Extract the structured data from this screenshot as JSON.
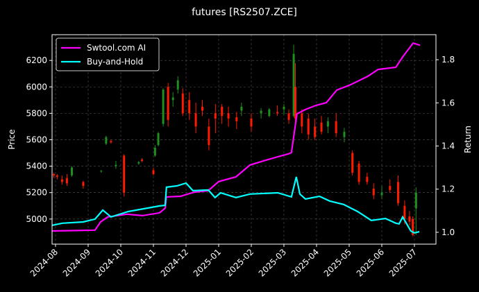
{
  "chart_data": {
    "type": "candlestick",
    "title": "futures [RS2507.ZCE]",
    "y_label": "Price",
    "y2_label": "Return",
    "xlim": [
      -0.106,
      11.66
    ],
    "xticks": [
      {
        "value": 0,
        "label": "2024-08"
      },
      {
        "value": 1,
        "label": "2024-09"
      },
      {
        "value": 2,
        "label": "2024-10"
      },
      {
        "value": 3,
        "label": "2024-11"
      },
      {
        "value": 4,
        "label": "2024-12"
      },
      {
        "value": 5,
        "label": "2025-01"
      },
      {
        "value": 6,
        "label": "2025-02"
      },
      {
        "value": 7,
        "label": "2025-03"
      },
      {
        "value": 8,
        "label": "2025-04"
      },
      {
        "value": 9,
        "label": "2025-05"
      },
      {
        "value": 10,
        "label": "2025-06"
      },
      {
        "value": 11,
        "label": "2025-07"
      }
    ],
    "ylim": [
      4810,
      6395
    ],
    "yticks": [
      5000,
      5200,
      5400,
      5600,
      5800,
      6000,
      6200
    ],
    "y2lim": [
      0.945,
      1.916
    ],
    "y2ticks": [
      {
        "value": 1,
        "label": "1.0"
      },
      1.2,
      1.4,
      1.6,
      1.8
    ],
    "grid": true,
    "legend_position": "upper-left",
    "up_color": "#1f8f1f",
    "down_color": "#ff1a00",
    "candles": {
      "x": [
        -0.05,
        0.05,
        0.2,
        0.35,
        0.5,
        0.85,
        1.4,
        1.55,
        1.7,
        1.85,
        2.1,
        2.55,
        2.65,
        3.0,
        3.05,
        3.15,
        3.3,
        3.45,
        3.6,
        3.75,
        3.9,
        4.1,
        4.3,
        4.5,
        4.7,
        4.9,
        5.1,
        5.3,
        5.55,
        5.7,
        6.0,
        6.3,
        6.55,
        6.8,
        7.0,
        7.15,
        7.3,
        7.35,
        7.55,
        7.75,
        7.95,
        8.15,
        8.35,
        8.6,
        8.85,
        9.1,
        9.3,
        9.55,
        9.75,
        10.0,
        10.25,
        10.5,
        10.7,
        10.85,
        10.95,
        11.05
      ],
      "open": [
        5340,
        5330,
        5300,
        5310,
        5330,
        5280,
        5360,
        5570,
        5590,
        5400,
        5480,
        5420,
        5450,
        5370,
        5480,
        5560,
        5720,
        6000,
        5900,
        5980,
        5950,
        5900,
        5800,
        5850,
        5700,
        5800,
        5850,
        5800,
        5770,
        5820,
        5760,
        5800,
        5780,
        5810,
        5830,
        5800,
        5780,
        6000,
        5800,
        5760,
        5700,
        5730,
        5700,
        5740,
        5620,
        5500,
        5420,
        5320,
        5230,
        5180,
        5250,
        5280,
        5100,
        5020,
        5000,
        5080
      ],
      "high": [
        5350,
        5340,
        5330,
        5340,
        5400,
        5290,
        5370,
        5630,
        5600,
        5440,
        5490,
        5440,
        5460,
        5390,
        5560,
        5660,
        5990,
        6030,
        5960,
        6080,
        5990,
        5960,
        5880,
        5900,
        5760,
        5870,
        5870,
        5850,
        5810,
        5880,
        5800,
        5840,
        5840,
        5860,
        5870,
        5830,
        6320,
        6180,
        5830,
        5800,
        5760,
        5780,
        5770,
        5800,
        5690,
        5520,
        5440,
        5350,
        5270,
        5250,
        5300,
        5330,
        5140,
        5060,
        5020,
        5240
      ],
      "low": [
        5310,
        5300,
        5260,
        5250,
        5320,
        5230,
        5350,
        5560,
        5570,
        5380,
        5170,
        5410,
        5430,
        5330,
        5470,
        5550,
        5700,
        5700,
        5850,
        5950,
        5780,
        5750,
        5650,
        5780,
        5520,
        5650,
        5720,
        5700,
        5680,
        5780,
        5660,
        5760,
        5770,
        5780,
        5790,
        5720,
        5770,
        5700,
        5650,
        5600,
        5600,
        5640,
        5650,
        5620,
        5580,
        5330,
        5260,
        5260,
        5150,
        5150,
        5200,
        5100,
        4960,
        4950,
        4870,
        4880
      ],
      "close": [
        5330,
        5320,
        5280,
        5270,
        5390,
        5250,
        5365,
        5620,
        5580,
        5410,
        5200,
        5430,
        5440,
        5340,
        5540,
        5650,
        5980,
        5750,
        5920,
        6050,
        5800,
        5800,
        5700,
        5820,
        5560,
        5760,
        5780,
        5760,
        5740,
        5850,
        5700,
        5820,
        5830,
        5800,
        5850,
        5750,
        6250,
        5760,
        5700,
        5640,
        5620,
        5660,
        5740,
        5650,
        5660,
        5350,
        5280,
        5280,
        5180,
        5200,
        5220,
        5120,
        5000,
        4980,
        4880,
        5200
      ]
    },
    "series": [
      {
        "name": "Swtool.com AI",
        "color": "#ff00ff",
        "axis": "y2",
        "x": [
          -0.11,
          1.21,
          1.38,
          1.6,
          2.19,
          2.66,
          3.19,
          3.36,
          3.4,
          3.83,
          4.26,
          4.68,
          5.0,
          5.53,
          5.96,
          6.38,
          6.81,
          7.13,
          7.23,
          7.4,
          7.66,
          7.98,
          8.3,
          8.62,
          9.04,
          9.57,
          9.89,
          10.43,
          10.64,
          10.96,
          11.17
        ],
        "values": [
          1.006,
          1.01,
          1.048,
          1.071,
          1.084,
          1.077,
          1.09,
          1.112,
          1.164,
          1.167,
          1.186,
          1.193,
          1.235,
          1.257,
          1.312,
          1.331,
          1.35,
          1.363,
          1.369,
          1.549,
          1.569,
          1.588,
          1.601,
          1.659,
          1.684,
          1.723,
          1.755,
          1.765,
          1.813,
          1.877,
          1.867
        ]
      },
      {
        "name": "Buy-and-Hold",
        "color": "#00ffff",
        "axis": "y2",
        "x": [
          -0.11,
          0.21,
          0.85,
          1.21,
          1.45,
          1.7,
          2.23,
          3.19,
          3.36,
          3.4,
          3.72,
          4.0,
          4.21,
          4.68,
          4.89,
          5.06,
          5.53,
          5.96,
          6.81,
          7.23,
          7.38,
          7.49,
          7.66,
          8.09,
          8.4,
          8.83,
          9.26,
          9.68,
          10.11,
          10.43,
          10.53,
          10.64,
          10.89,
          11.0,
          11.15
        ],
        "values": [
          1.032,
          1.042,
          1.048,
          1.061,
          1.103,
          1.071,
          1.096,
          1.122,
          1.125,
          1.209,
          1.215,
          1.228,
          1.193,
          1.196,
          1.161,
          1.183,
          1.161,
          1.177,
          1.183,
          1.164,
          1.257,
          1.177,
          1.154,
          1.167,
          1.145,
          1.129,
          1.096,
          1.055,
          1.064,
          1.042,
          1.039,
          1.071,
          1.006,
          0.997,
          1.003
        ]
      }
    ]
  }
}
